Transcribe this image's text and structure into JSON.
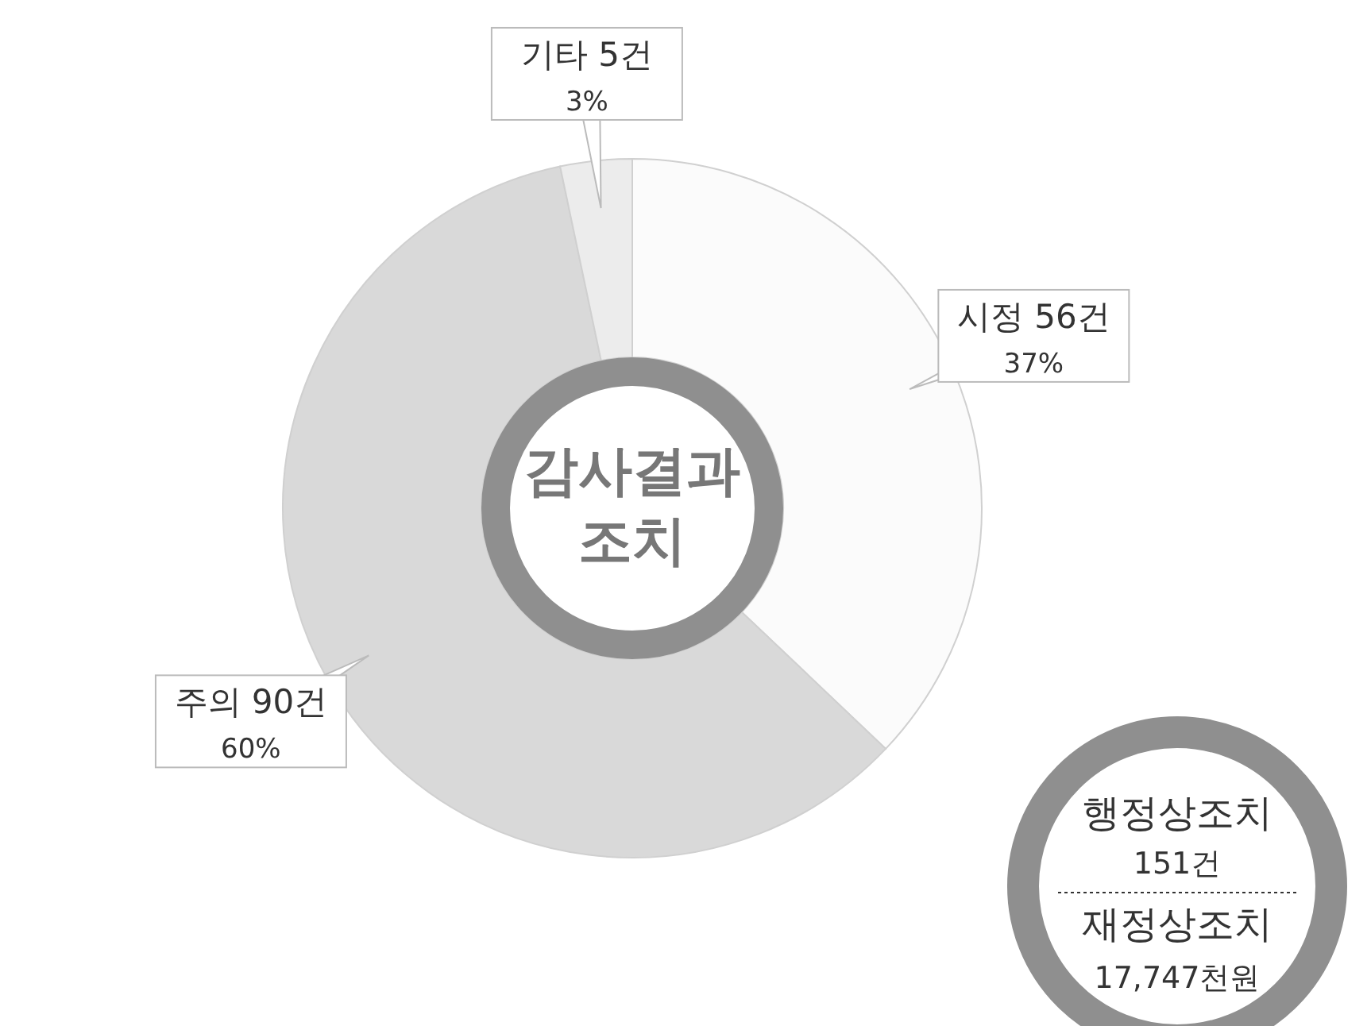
{
  "chart_data": {
    "type": "donut",
    "title": "감사결과\n조치",
    "categories": [
      "시정",
      "주의",
      "기타"
    ],
    "values": [
      56,
      90,
      5
    ],
    "value_labels": [
      "56건\n37%",
      "90건\n60%",
      "5건\n3%"
    ],
    "colors": [
      "#fbfbfb",
      "#d9d9d9",
      "#ececec"
    ],
    "annotations": [
      "행정상조치",
      "151건",
      "재정상조치",
      "17,747천원"
    ]
  }
}
